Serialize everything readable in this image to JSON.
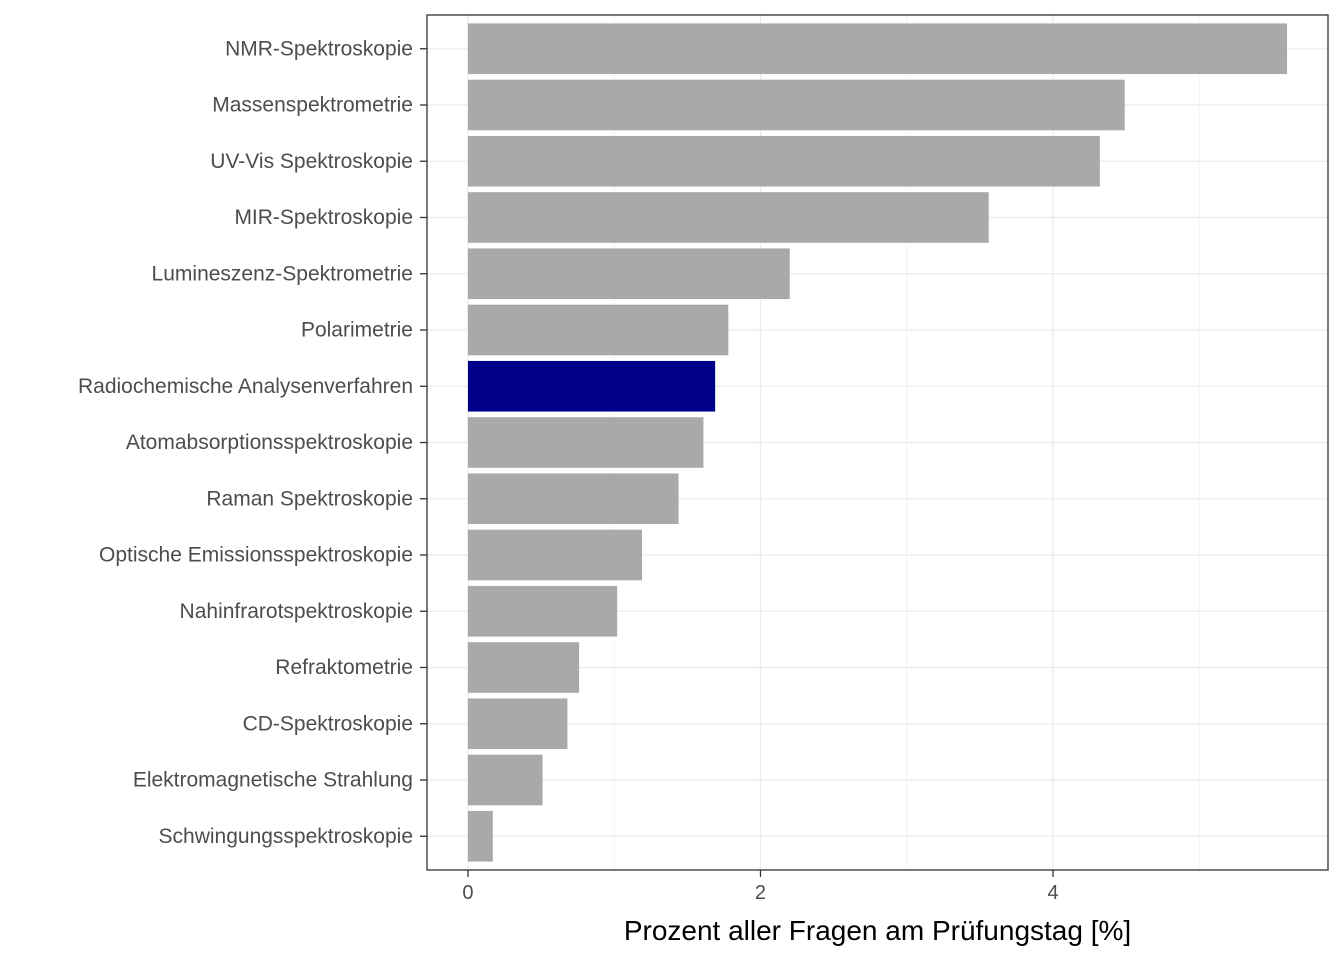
{
  "chart_data": {
    "type": "bar",
    "orientation": "horizontal",
    "categories": [
      "NMR-Spektroskopie",
      "Massenspektrometrie",
      "UV-Vis Spektroskopie",
      "MIR-Spektroskopie",
      "Lumineszenz-Spektrometrie",
      "Polarimetrie",
      "Radiochemische Analysenverfahren",
      "Atomabsorptionsspektroskopie",
      "Raman Spektroskopie",
      "Optische Emissionsspektroskopie",
      "Nahinfrarotspektroskopie",
      "Refraktometrie",
      "CD-Spektroskopie",
      "Elektromagnetische Strahlung",
      "Schwingungsspektroskopie"
    ],
    "values": [
      5.6,
      4.49,
      4.32,
      3.56,
      2.2,
      1.78,
      1.69,
      1.61,
      1.44,
      1.19,
      1.02,
      0.76,
      0.68,
      0.51,
      0.17
    ],
    "highlight": "Radiochemische Analysenverfahren",
    "colors": {
      "bar": "#a9a9a9",
      "highlight": "#00008b"
    },
    "xticks": [
      "0",
      "2",
      "4"
    ],
    "xtick_values": [
      0,
      2,
      4
    ],
    "xlim": [
      -0.28,
      5.88
    ],
    "xlabel": "Prozent aller Fragen am Prüfungstag [%]",
    "ylabel": "",
    "title": "",
    "grid": true,
    "legend": "none"
  }
}
